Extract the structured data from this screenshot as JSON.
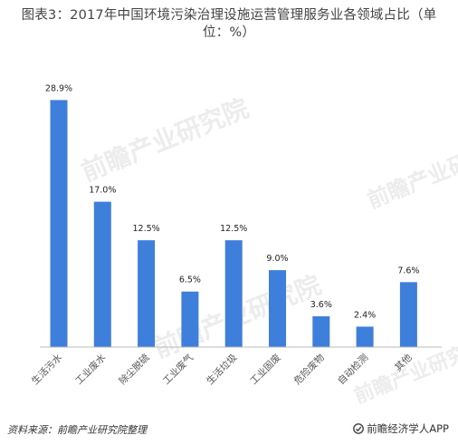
{
  "chart_data": {
    "type": "bar",
    "title": "图表3：2017年中国环境污染治理设施运营管理服务业各领域占比（单位：%）",
    "categories": [
      "生活污水",
      "工业废水",
      "除尘脱硫",
      "工业废气",
      "生活垃圾",
      "工业固废",
      "危险废物",
      "自动检测",
      "其他"
    ],
    "values": [
      28.9,
      17.0,
      12.5,
      6.5,
      12.5,
      9.0,
      3.6,
      2.4,
      7.6
    ],
    "value_labels": [
      "28.9%",
      "17.0%",
      "12.5%",
      "6.5%",
      "12.5%",
      "9.0%",
      "3.6%",
      "2.4%",
      "7.6%"
    ],
    "xlabel": "",
    "ylabel": "",
    "ylim": [
      0,
      30
    ],
    "grid": false,
    "legend": "none",
    "bar_color": "#3f7fdc",
    "axis_color": "#bbbbbb"
  },
  "watermark": {
    "text": "前瞻产业研究院",
    "color": "#c8c8c8"
  },
  "footer": {
    "source": "资料来源：前瞻产业研究院整理",
    "brand": "前瞻经济学人APP",
    "brand_icon": "qianzhan-logo-icon"
  }
}
